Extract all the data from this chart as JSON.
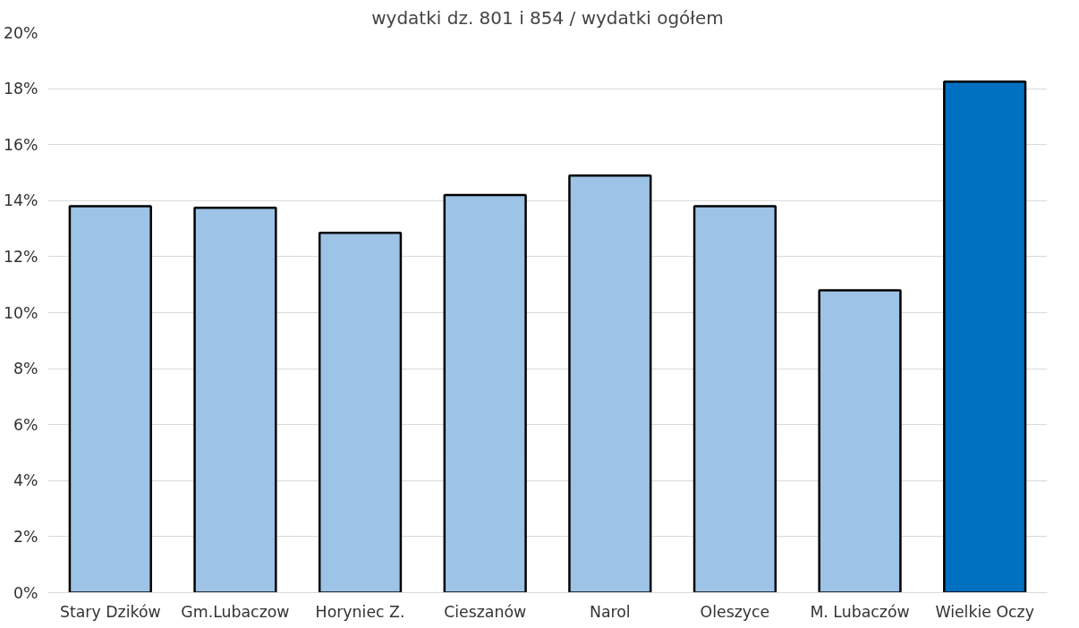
{
  "chart_data": {
    "type": "bar",
    "title": "wydatki dz. 801 i 854 / wydatki ogółem",
    "categories": [
      "Stary Dzików",
      "Gm.Lubaczow",
      "Horyniec Z.",
      "Cieszanów",
      "Narol",
      "Oleszyce",
      "M. Lubaczów",
      "Wielkie Oczy"
    ],
    "values": [
      13.8,
      13.75,
      12.85,
      14.2,
      14.9,
      13.8,
      10.8,
      18.25
    ],
    "colors": [
      "#9dc3e6",
      "#9dc3e6",
      "#9dc3e6",
      "#9dc3e6",
      "#9dc3e6",
      "#9dc3e6",
      "#9dc3e6",
      "#0070c0"
    ],
    "ylim": [
      0,
      20
    ],
    "yticks": [
      {
        "value": 0,
        "label": "0%"
      },
      {
        "value": 2,
        "label": "2%"
      },
      {
        "value": 4,
        "label": "4%"
      },
      {
        "value": 6,
        "label": "6%"
      },
      {
        "value": 8,
        "label": "8%"
      },
      {
        "value": 10,
        "label": "10%"
      },
      {
        "value": 12,
        "label": "12%"
      },
      {
        "value": 14,
        "label": "14%"
      },
      {
        "value": 16,
        "label": "16%"
      },
      {
        "value": 18,
        "label": "18%"
      },
      {
        "value": 20,
        "label": "20%"
      }
    ],
    "grid": "y"
  }
}
